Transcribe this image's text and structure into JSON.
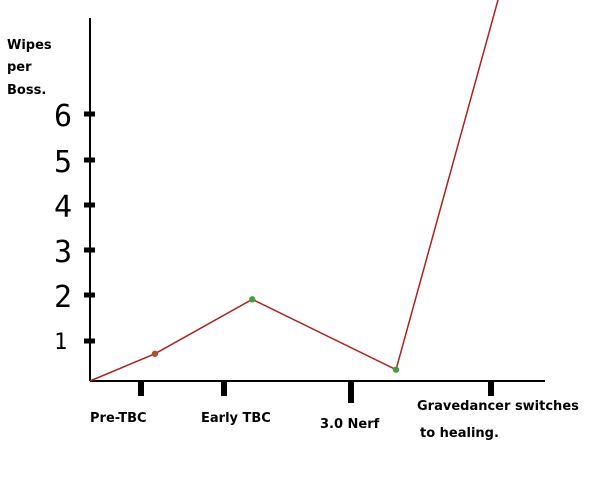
{
  "chart_data": {
    "type": "line",
    "ylabel_lines": [
      "Wipes",
      "per",
      "Boss."
    ],
    "categories": [
      "Pre-TBC",
      "Early TBC",
      "3.0 Nerf",
      "Gravedancer switches to healing."
    ],
    "category_label_lines": [
      [
        "Pre-TBC"
      ],
      [
        "Early TBC"
      ],
      [
        "3.0 Nerf"
      ],
      [
        "Gravedancer switches",
        "to healing."
      ]
    ],
    "y_tick_labels": [
      "1",
      "2",
      "3",
      "4",
      "5",
      "6"
    ],
    "y_ticks": [
      1,
      2,
      3,
      4,
      5,
      6
    ],
    "ylim": [
      0,
      8.4
    ],
    "x": [
      0,
      0.7,
      1.75,
      3.3,
      4.4
    ],
    "y": [
      0,
      0.6,
      1.8,
      0.25,
      8.4
    ],
    "marked_points": [
      1,
      2,
      3
    ],
    "line_color": "#b02020",
    "point_colors": [
      "#b05030",
      "#40a040",
      "#40a040"
    ],
    "axis_color": "#000000",
    "grid": false,
    "legend": "none"
  }
}
